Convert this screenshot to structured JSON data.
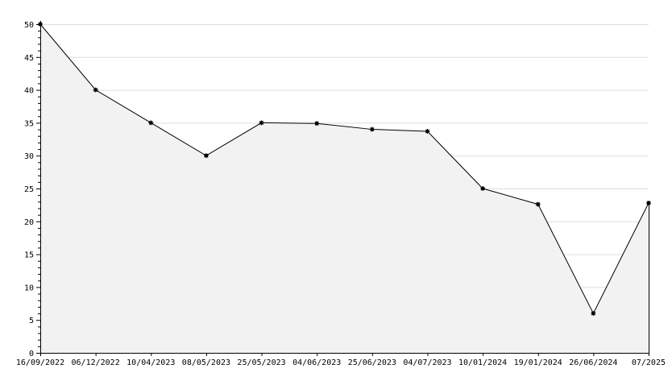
{
  "chart_data": {
    "type": "area",
    "title": "",
    "xlabel": "",
    "ylabel": "",
    "categories": [
      "16/09/2022",
      "06/12/2022",
      "10/04/2023",
      "08/05/2023",
      "25/05/2023",
      "04/06/2023",
      "25/06/2023",
      "04/07/2023",
      "10/01/2024",
      "19/01/2024",
      "26/06/2024",
      "07/2025"
    ],
    "values": [
      50,
      40,
      35,
      30,
      35,
      34.9,
      34,
      33.7,
      25,
      22.6,
      6,
      22.8
    ],
    "ylim": [
      0,
      50
    ],
    "yticks": [
      0,
      5,
      10,
      15,
      20,
      25,
      30,
      35,
      40,
      45,
      50
    ],
    "grid": true,
    "colors": {
      "line": "#000000",
      "fill": "#f2f2f2",
      "grid": "#dddddd",
      "marker": "#000000"
    }
  }
}
